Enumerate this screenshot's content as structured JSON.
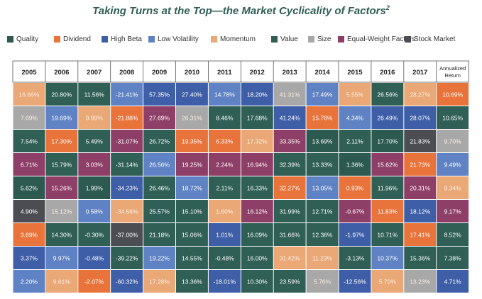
{
  "header": {
    "title": "Taking Turns at the Top—the Market Cyclicality of Factors",
    "footnote_mark": "2"
  },
  "colors": {
    "Quality": "#2c5a50",
    "Dividend": "#e8743b",
    "High Beta": "#3f5ea8",
    "Low Volatility": "#5f82c4",
    "Momentum": "#e9a876",
    "Value": "#2f5f55",
    "Size": "#a8a8a8",
    "Equal-Weight Factors": "#8e3f67",
    "Stock Market": "#4b4d52"
  },
  "legend": [
    {
      "label": "Quality",
      "key": "Quality"
    },
    {
      "label": "Dividend",
      "key": "Dividend"
    },
    {
      "label": "High Beta",
      "key": "High Beta"
    },
    {
      "label": "Low Volatility",
      "key": "Low Volatility"
    },
    {
      "label": "Momentum",
      "key": "Momentum"
    },
    {
      "label": "Value",
      "key": "Value"
    },
    {
      "label": "Size",
      "key": "Size"
    },
    {
      "label": "Equal-Weight Factors",
      "key": "Equal-Weight Factors"
    },
    {
      "label": "Stock Market",
      "key": "Stock Market"
    }
  ],
  "chart_data": {
    "type": "table",
    "columns": [
      "2005",
      "2006",
      "2007",
      "2008",
      "2009",
      "2010",
      "2011",
      "2012",
      "2013",
      "2014",
      "2015",
      "2016",
      "2017",
      "Annualized Return"
    ],
    "cells": [
      [
        {
          "v": "16.66%",
          "c": "Momentum"
        },
        {
          "v": "20.80%",
          "c": "Value"
        },
        {
          "v": "11.56%",
          "c": "Value"
        },
        {
          "v": "-21.41%",
          "c": "Low Volatility"
        },
        {
          "v": "57.35%",
          "c": "High Beta"
        },
        {
          "v": "27.40%",
          "c": "High Beta"
        },
        {
          "v": "14.78%",
          "c": "Low Volatility"
        },
        {
          "v": "18.20%",
          "c": "High Beta"
        },
        {
          "v": "41.31%",
          "c": "Size"
        },
        {
          "v": "17.49%",
          "c": "Low Volatility"
        },
        {
          "v": "5.55%",
          "c": "Momentum"
        },
        {
          "v": "26.56%",
          "c": "Value"
        },
        {
          "v": "28.27%",
          "c": "Momentum"
        },
        {
          "v": "10.69%",
          "c": "Dividend"
        }
      ],
      [
        {
          "v": "7.69%",
          "c": "Size"
        },
        {
          "v": "19.69%",
          "c": "Low Volatility"
        },
        {
          "v": "9.99%",
          "c": "Momentum"
        },
        {
          "v": "-21.88%",
          "c": "Dividend"
        },
        {
          "v": "27.69%",
          "c": "Equal-Weight Factors"
        },
        {
          "v": "26.31%",
          "c": "Size"
        },
        {
          "v": "8.46%",
          "c": "Value"
        },
        {
          "v": "17.68%",
          "c": "Value"
        },
        {
          "v": "41.24%",
          "c": "High Beta"
        },
        {
          "v": "15.76%",
          "c": "Dividend"
        },
        {
          "v": "4.34%",
          "c": "Low Volatility"
        },
        {
          "v": "26.49%",
          "c": "High Beta"
        },
        {
          "v": "28.07%",
          "c": "High Beta"
        },
        {
          "v": "10.65%",
          "c": "Value"
        }
      ],
      [
        {
          "v": "7.54%",
          "c": "Value"
        },
        {
          "v": "17.30%",
          "c": "Dividend"
        },
        {
          "v": "5.49%",
          "c": "Value"
        },
        {
          "v": "-31.07%",
          "c": "Equal-Weight Factors"
        },
        {
          "v": "26.72%",
          "c": "Value"
        },
        {
          "v": "19.35%",
          "c": "Dividend"
        },
        {
          "v": "6.33%",
          "c": "Dividend"
        },
        {
          "v": "17.32%",
          "c": "Momentum"
        },
        {
          "v": "33.35%",
          "c": "Equal-Weight Factors"
        },
        {
          "v": "13.69%",
          "c": "Quality"
        },
        {
          "v": "2.11%",
          "c": "Value"
        },
        {
          "v": "17.70%",
          "c": "Quality"
        },
        {
          "v": "21.83%",
          "c": "Stock Market"
        },
        {
          "v": "9.70%",
          "c": "Size"
        }
      ],
      [
        {
          "v": "6.71%",
          "c": "Equal-Weight Factors"
        },
        {
          "v": "15.79%",
          "c": "Value"
        },
        {
          "v": "3.03%",
          "c": "Equal-Weight Factors"
        },
        {
          "v": "-31.14%",
          "c": "Value"
        },
        {
          "v": "26.56%",
          "c": "Low Volatility"
        },
        {
          "v": "19.25%",
          "c": "Equal-Weight Factors"
        },
        {
          "v": "2.24%",
          "c": "Equal-Weight Factors"
        },
        {
          "v": "16.94%",
          "c": "Equal-Weight Factors"
        },
        {
          "v": "32.39%",
          "c": "Value"
        },
        {
          "v": "13.33%",
          "c": "Value"
        },
        {
          "v": "1.36%",
          "c": "Quality"
        },
        {
          "v": "15.62%",
          "c": "Equal-Weight Factors"
        },
        {
          "v": "21.73%",
          "c": "Dividend"
        },
        {
          "v": "9.49%",
          "c": "Low Volatility"
        }
      ],
      [
        {
          "v": "5.62%",
          "c": "Quality"
        },
        {
          "v": "15.26%",
          "c": "Equal-Weight Factors"
        },
        {
          "v": "1.99%",
          "c": "Quality"
        },
        {
          "v": "-34.23%",
          "c": "High Beta"
        },
        {
          "v": "26.46%",
          "c": "Value"
        },
        {
          "v": "18.72%",
          "c": "Low Volatility"
        },
        {
          "v": "2.11%",
          "c": "Value"
        },
        {
          "v": "16.33%",
          "c": "Value"
        },
        {
          "v": "32.27%",
          "c": "Dividend"
        },
        {
          "v": "13.05%",
          "c": "Low Volatility"
        },
        {
          "v": "0.93%",
          "c": "Dividend"
        },
        {
          "v": "11.96%",
          "c": "Value"
        },
        {
          "v": "20.31%",
          "c": "Equal-Weight Factors"
        },
        {
          "v": "9.34%",
          "c": "Momentum"
        }
      ],
      [
        {
          "v": "4.90%",
          "c": "Stock Market"
        },
        {
          "v": "15.12%",
          "c": "Size"
        },
        {
          "v": "0.58%",
          "c": "Low Volatility"
        },
        {
          "v": "-34.56%",
          "c": "Momentum"
        },
        {
          "v": "25.57%",
          "c": "Value"
        },
        {
          "v": "15.10%",
          "c": "Value"
        },
        {
          "v": "1.60%",
          "c": "Momentum"
        },
        {
          "v": "16.12%",
          "c": "Equal-Weight Factors"
        },
        {
          "v": "31.99%",
          "c": "Value"
        },
        {
          "v": "12.71%",
          "c": "Value"
        },
        {
          "v": "-0.67%",
          "c": "Equal-Weight Factors"
        },
        {
          "v": "11.83%",
          "c": "Dividend"
        },
        {
          "v": "18.12%",
          "c": "High Beta"
        },
        {
          "v": "9.17%",
          "c": "Equal-Weight Factors"
        }
      ],
      [
        {
          "v": "3.69%",
          "c": "Dividend"
        },
        {
          "v": "14.30%",
          "c": "Value"
        },
        {
          "v": "-0.30%",
          "c": "Value"
        },
        {
          "v": "-37.00%",
          "c": "Stock Market"
        },
        {
          "v": "21.18%",
          "c": "Value"
        },
        {
          "v": "15.06%",
          "c": "Value"
        },
        {
          "v": "1.01%",
          "c": "High Beta"
        },
        {
          "v": "16.09%",
          "c": "Value"
        },
        {
          "v": "31.66%",
          "c": "Value"
        },
        {
          "v": "12.36%",
          "c": "Value"
        },
        {
          "v": "-1.97%",
          "c": "High Beta"
        },
        {
          "v": "10.71%",
          "c": "Value"
        },
        {
          "v": "17.41%",
          "c": "Dividend"
        },
        {
          "v": "8.52%",
          "c": "Value"
        }
      ],
      [
        {
          "v": "3.37%",
          "c": "High Beta"
        },
        {
          "v": "9.97%",
          "c": "Low Volatility"
        },
        {
          "v": "-0.48%",
          "c": "High Beta"
        },
        {
          "v": "-39.22%",
          "c": "Value"
        },
        {
          "v": "19.22%",
          "c": "Low Volatility"
        },
        {
          "v": "14.55%",
          "c": "Value"
        },
        {
          "v": "-0.48%",
          "c": "Value"
        },
        {
          "v": "16.00%",
          "c": "Value"
        },
        {
          "v": "31.42%",
          "c": "Momentum"
        },
        {
          "v": "11.23%",
          "c": "Momentum"
        },
        {
          "v": "-3.13%",
          "c": "Value"
        },
        {
          "v": "10.37%",
          "c": "Low Volatility"
        },
        {
          "v": "15.36%",
          "c": "Value"
        },
        {
          "v": "7.38%",
          "c": "Value"
        }
      ],
      [
        {
          "v": "2.20%",
          "c": "Low Volatility"
        },
        {
          "v": "9.61%",
          "c": "Momentum"
        },
        {
          "v": "-2.07%",
          "c": "Dividend"
        },
        {
          "v": "-60.32%",
          "c": "High Beta"
        },
        {
          "v": "17.28%",
          "c": "Momentum"
        },
        {
          "v": "13.36%",
          "c": "Value"
        },
        {
          "v": "-18.01%",
          "c": "High Beta"
        },
        {
          "v": "10.30%",
          "c": "Value"
        },
        {
          "v": "23.59%",
          "c": "Value"
        },
        {
          "v": "5.76%",
          "c": "Size"
        },
        {
          "v": "-12.56%",
          "c": "High Beta"
        },
        {
          "v": "5.70%",
          "c": "Momentum"
        },
        {
          "v": "13.23%",
          "c": "Size"
        },
        {
          "v": "4.71%",
          "c": "High Beta"
        }
      ]
    ]
  }
}
